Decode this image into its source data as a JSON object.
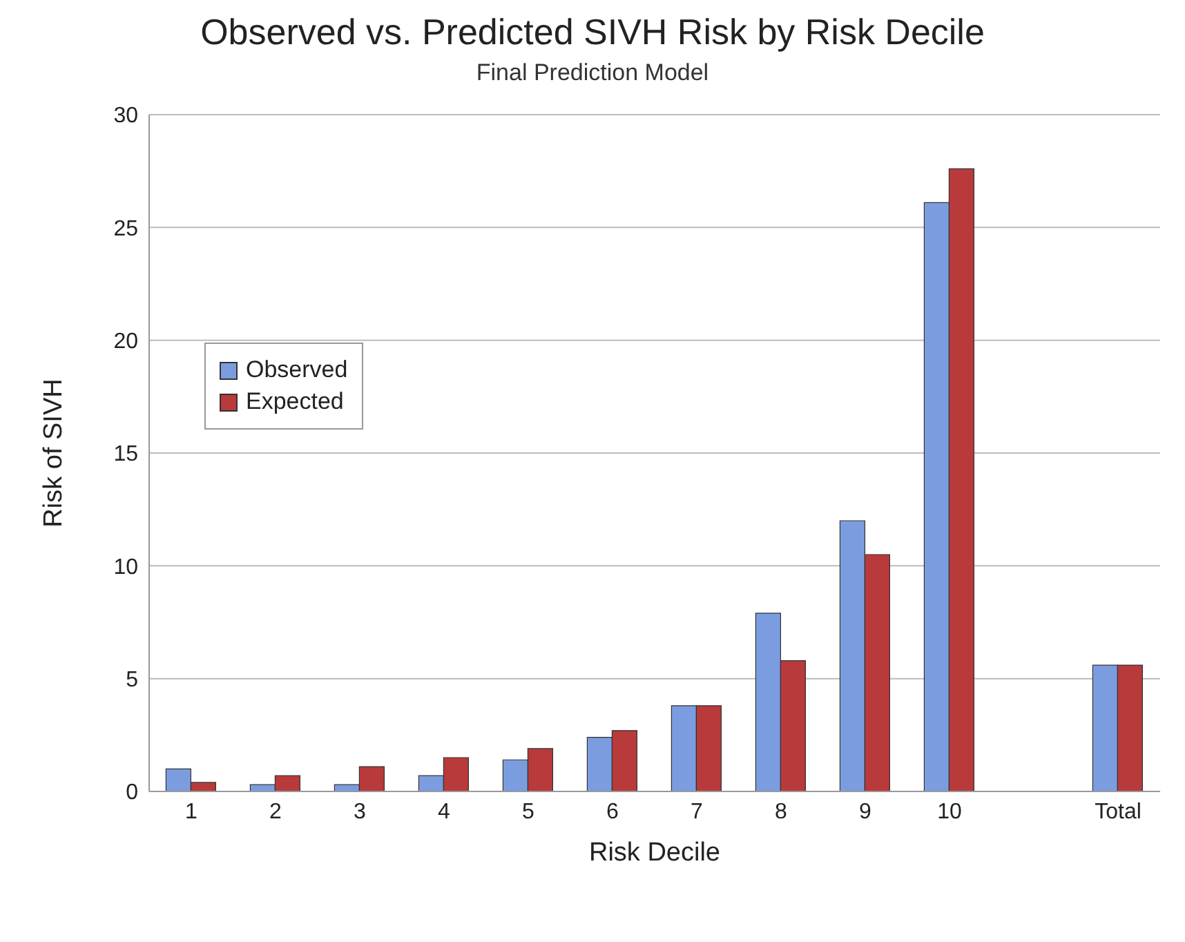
{
  "chart_data": {
    "type": "bar",
    "title": "Observed vs. Predicted SIVH Risk by Risk Decile",
    "subtitle": "Final Prediction Model",
    "xlabel": "Risk Decile",
    "ylabel": "Risk of SIVH",
    "categories": [
      "1",
      "2",
      "3",
      "4",
      "5",
      "6",
      "7",
      "8",
      "9",
      "10",
      null,
      "Total"
    ],
    "series": [
      {
        "name": "Observed",
        "color": "#7b9de0",
        "values": [
          1.0,
          0.3,
          0.3,
          0.7,
          1.4,
          2.4,
          3.8,
          7.9,
          12.0,
          26.1,
          null,
          5.6
        ]
      },
      {
        "name": "Expected",
        "color": "#b83a3a",
        "values": [
          0.4,
          0.7,
          1.1,
          1.5,
          1.9,
          2.7,
          3.8,
          5.8,
          10.5,
          27.6,
          null,
          5.6
        ]
      }
    ],
    "ylim": [
      0,
      30
    ],
    "yticks": [
      0,
      5,
      10,
      15,
      20,
      25,
      30
    ],
    "grid": "y",
    "legend": "left"
  }
}
